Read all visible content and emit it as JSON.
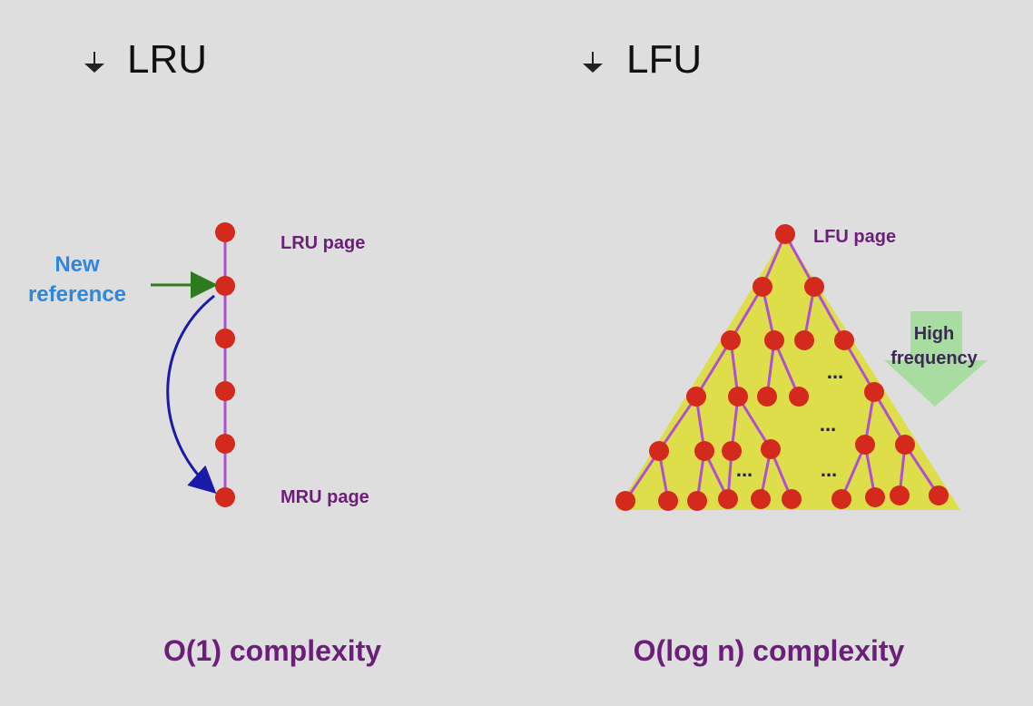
{
  "lru": {
    "heading": "LRU",
    "top_label": "LRU page",
    "bottom_label": "MRU page",
    "new_reference_line1": "New",
    "new_reference_line2": "reference",
    "complexity": "O(1) complexity"
  },
  "lfu": {
    "heading": "LFU",
    "top_label": "LFU page",
    "arrow_label_line1": "High",
    "arrow_label_line2": "frequency",
    "ellipsis": "...",
    "complexity": "O(log n) complexity"
  },
  "colors": {
    "background": "#dedede",
    "node": "#d42a1e",
    "edge": "#b04fcf",
    "triangle": "#dede4a",
    "green_arrow": "#2d7a1f",
    "blue_arrow": "#1a1aa8",
    "frequency_arrow": "#a8dca0",
    "label_purple": "#6b1f78",
    "label_blue": "#2e86dd"
  },
  "icons": [
    "bullet-arrow-icon",
    "frequency-arrow-icon"
  ]
}
